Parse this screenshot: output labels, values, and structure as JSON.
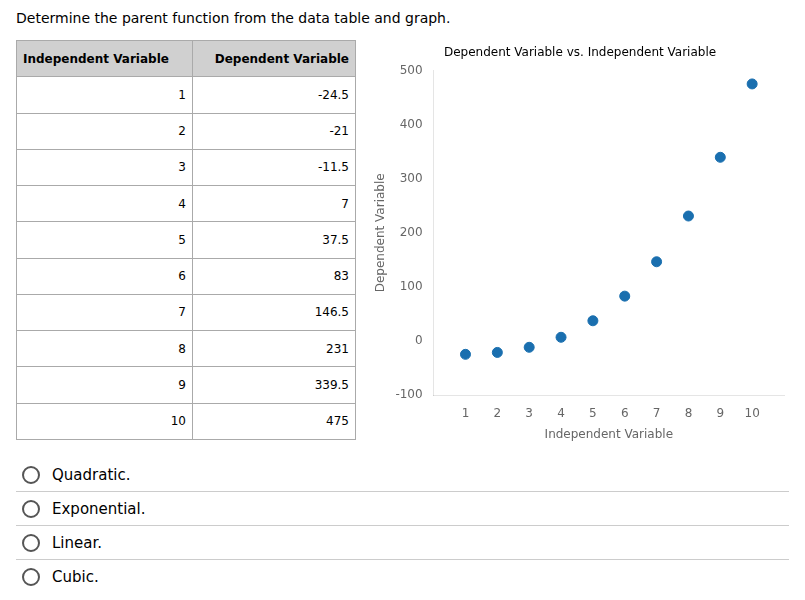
{
  "chart_data": {
    "type": "scatter",
    "title": "Determine the parent function from the data table and graph.",
    "subtitle": "Dependent Variable vs. Independent Variable",
    "xlabel": "Independent Variable",
    "ylabel": "Dependent Variable",
    "x": [
      1,
      2,
      3,
      4,
      5,
      6,
      7,
      8,
      9,
      10
    ],
    "values": [
      -24.5,
      -21,
      -11.5,
      7,
      37.5,
      83,
      146.5,
      231,
      339.5,
      475
    ],
    "color": "#1a6faf",
    "xlim": [
      0,
      11
    ],
    "ylim": [
      -100,
      500
    ],
    "xticks": [
      1,
      2,
      3,
      4,
      5,
      6,
      7,
      8,
      9,
      10
    ],
    "yticks": [
      -100,
      0,
      100,
      200,
      300,
      400,
      500
    ],
    "grid": false,
    "annotations": [
      "Quadratic.",
      "Exponential.",
      "Linear.",
      "Cubic."
    ]
  }
}
